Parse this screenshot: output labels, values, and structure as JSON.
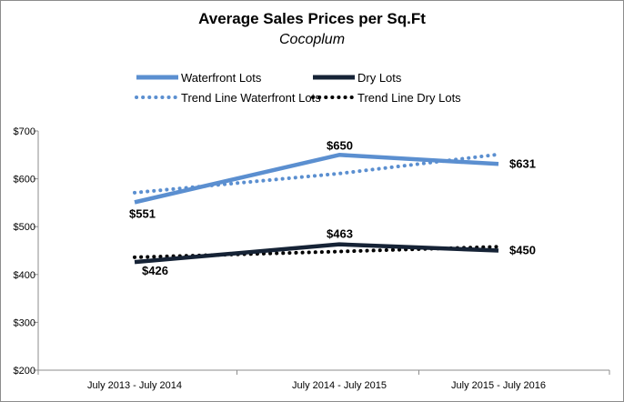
{
  "chart_data": {
    "type": "line",
    "title": "Average Sales Prices per Sq.Ft",
    "subtitle": "Cocoplum",
    "xlabel": "",
    "ylabel": "",
    "categories": [
      "July 2013 - July 2014",
      "July 2014 - July 2015",
      "July 2015 - July 2016"
    ],
    "ylim": [
      200,
      700
    ],
    "yticks": [
      200,
      300,
      400,
      500,
      600,
      700
    ],
    "ytick_labels": [
      "$200",
      "$300",
      "$400",
      "$500",
      "$600",
      "$700"
    ],
    "grid": false,
    "legend_position": "top",
    "series": [
      {
        "name": "Waterfront Lots",
        "values": [
          551,
          650,
          631
        ],
        "labels": [
          "$551",
          "$650",
          "$631"
        ],
        "color": "#5b8fd0",
        "style": "solid"
      },
      {
        "name": "Dry Lots",
        "values": [
          426,
          463,
          450
        ],
        "labels": [
          "$426",
          "$463",
          "$450"
        ],
        "color": "#162336",
        "style": "solid"
      },
      {
        "name": "Trend Line Waterfront Lots",
        "values": [
          571,
          611,
          651
        ],
        "color": "#5b8fd0",
        "style": "dotted"
      },
      {
        "name": "Trend Line Dry Lots",
        "values": [
          436,
          448,
          458
        ],
        "color": "#000000",
        "style": "dotted"
      }
    ]
  }
}
